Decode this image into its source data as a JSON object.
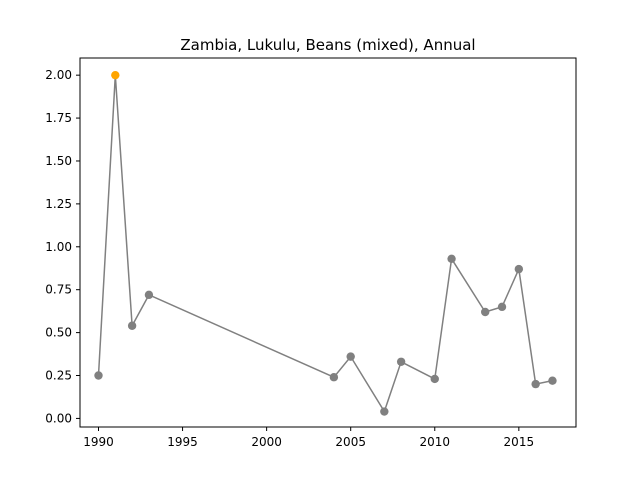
{
  "chart_data": {
    "type": "line",
    "title": "Zambia, Lukulu, Beans (mixed), Annual",
    "xlabel": "",
    "ylabel": "",
    "xlim": [
      1988.9,
      2018.4
    ],
    "ylim": [
      -0.05,
      2.1
    ],
    "x_ticks": [
      1990,
      1995,
      2000,
      2005,
      2010,
      2015
    ],
    "y_ticks": [
      0.0,
      0.25,
      0.5,
      0.75,
      1.0,
      1.25,
      1.5,
      1.75,
      2.0
    ],
    "y_tick_labels": [
      "0.00",
      "0.25",
      "0.50",
      "0.75",
      "1.00",
      "1.25",
      "1.50",
      "1.75",
      "2.00"
    ],
    "grid": false,
    "series": [
      {
        "line_color": "#808080",
        "marker_color": "#808080",
        "highlight_color": "#FFA500",
        "points": [
          {
            "x": 1990,
            "y": 0.25
          },
          {
            "x": 1991,
            "y": 2.0,
            "highlight": true
          },
          {
            "x": 1992,
            "y": 0.54
          },
          {
            "x": 1993,
            "y": 0.72
          },
          {
            "x": 2004,
            "y": 0.24
          },
          {
            "x": 2005,
            "y": 0.36
          },
          {
            "x": 2007,
            "y": 0.04
          },
          {
            "x": 2008,
            "y": 0.33
          },
          {
            "x": 2010,
            "y": 0.23
          },
          {
            "x": 2011,
            "y": 0.93
          },
          {
            "x": 2013,
            "y": 0.62
          },
          {
            "x": 2014,
            "y": 0.65
          },
          {
            "x": 2015,
            "y": 0.87
          },
          {
            "x": 2016,
            "y": 0.2
          },
          {
            "x": 2017,
            "y": 0.22
          }
        ]
      }
    ]
  }
}
